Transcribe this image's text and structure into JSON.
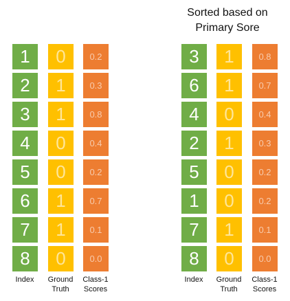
{
  "left_table": {
    "index": [
      "1",
      "2",
      "3",
      "4",
      "5",
      "6",
      "7",
      "8"
    ],
    "ground_truth": [
      "0",
      "1",
      "1",
      "0",
      "0",
      "1",
      "1",
      "0"
    ],
    "scores": [
      "0.2",
      "0.3",
      "0.8",
      "0.4",
      "0.2",
      "0.7",
      "0.1",
      "0.0"
    ]
  },
  "right_table": {
    "title_line1": "Sorted based on",
    "title_line2": "Primary Sore",
    "index": [
      "3",
      "6",
      "4",
      "2",
      "5",
      "1",
      "7",
      "8"
    ],
    "ground_truth": [
      "1",
      "1",
      "0",
      "1",
      "0",
      "0",
      "1",
      "0"
    ],
    "scores": [
      "0.8",
      "0.7",
      "0.4",
      "0.3",
      "0.2",
      "0.2",
      "0.1",
      "0.0"
    ]
  },
  "labels": {
    "index": "Index",
    "ground_truth_line1": "Ground",
    "ground_truth_line2": "Truth",
    "scores_line1": "Class-1",
    "scores_line2": "Scores"
  },
  "colors": {
    "index": "#70ad47",
    "ground_truth": "#ffc000",
    "scores": "#ed7d31"
  }
}
